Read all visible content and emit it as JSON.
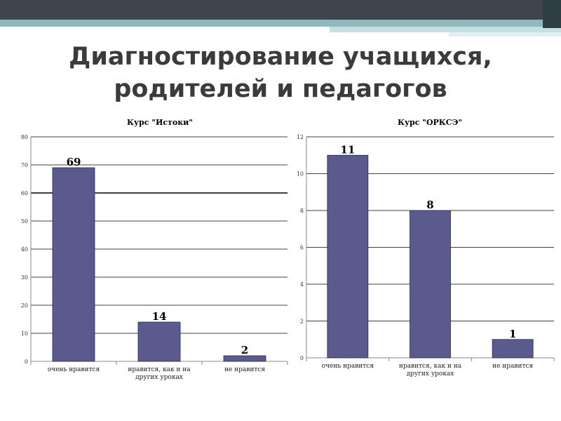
{
  "title_line1": "Диагностирование учащихся,",
  "title_line2": "родителей и педагогов",
  "colors": {
    "bar": "#5a5a8e",
    "bar_edge": "#2a2a55",
    "grid": "#000000",
    "axis": "#888888"
  },
  "chart_data": [
    {
      "type": "bar",
      "title": "Курс \"Истоки\"",
      "categories": [
        [
          "очень нравится"
        ],
        [
          "нравится, как и на",
          "других уроках"
        ],
        [
          "не нравится"
        ]
      ],
      "values": [
        69,
        14,
        2
      ],
      "ylim": [
        0,
        80
      ],
      "yticks": [
        0,
        10,
        20,
        30,
        40,
        50,
        60,
        70,
        80
      ],
      "grid": true
    },
    {
      "type": "bar",
      "title": "Курс \"ОРКСЭ\"",
      "categories": [
        [
          "очень нравится"
        ],
        [
          "нравится, как и на",
          "других уроках"
        ],
        [
          "не нравится"
        ]
      ],
      "values": [
        11,
        8,
        1
      ],
      "ylim": [
        0,
        12
      ],
      "yticks": [
        0,
        2,
        4,
        6,
        8,
        10,
        12
      ],
      "grid": true
    }
  ]
}
